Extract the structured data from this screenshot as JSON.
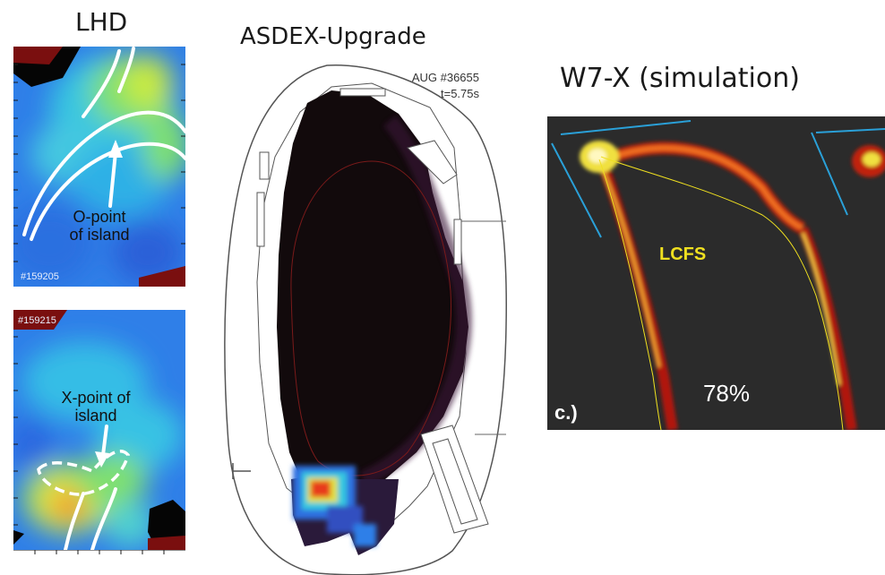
{
  "titles": {
    "lhd": "LHD",
    "asdex": "ASDEX-Upgrade",
    "w7x": "W7-X (simulation)"
  },
  "lhd_top": {
    "shot": "#159205",
    "annotation_line1": "O-point",
    "annotation_line2": "of island"
  },
  "lhd_bottom": {
    "shot": "#159215",
    "annotation_line1": "X-point of",
    "annotation_line2": "island"
  },
  "asdex": {
    "shot": "AUG #36655",
    "time": "t=5.75s"
  },
  "w7x": {
    "lcfs_label": "LCFS",
    "percent": "78%",
    "panel_label": "c.)"
  },
  "colors": {
    "w7x_background": "#2b2b2b",
    "lcfs_text": "#f0e020",
    "limiter_line": "#2aa0d8"
  }
}
